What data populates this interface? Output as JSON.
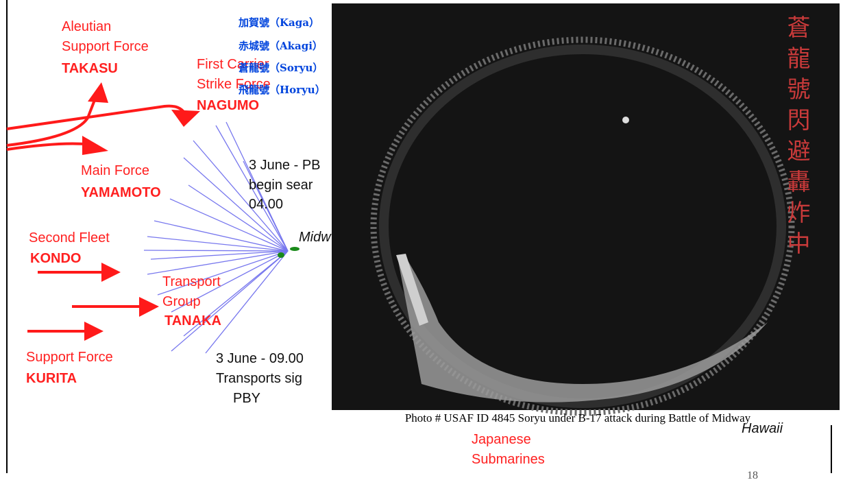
{
  "forces": [
    {
      "name_lines": [
        "Aleutian",
        "Support Force"
      ],
      "commander": "TAKASU"
    },
    {
      "name_lines": [
        "First Carrier",
        "Strike Force"
      ],
      "commander": "NAGUMO"
    },
    {
      "name_lines": [
        "Main Force"
      ],
      "commander": "YAMAMOTO"
    },
    {
      "name_lines": [
        "Second Fleet"
      ],
      "commander": "KONDO"
    },
    {
      "name_lines": [
        "Transport",
        "Group"
      ],
      "commander": "TANAKA"
    },
    {
      "name_lines": [
        "Support Force"
      ],
      "commander": "KURITA"
    }
  ],
  "notes": [
    {
      "lines": [
        "3 June - PB",
        "begin sear",
        "04.00"
      ]
    },
    {
      "lines": [
        "3 June - 09.00",
        "Transports sig",
        "PBY"
      ]
    }
  ],
  "midway": "Midw",
  "submarines": [
    "Japanese",
    "Submarines"
  ],
  "hawaii": "Hawaii",
  "carriers": [
    "加賀號（Kaga）",
    "赤城號（Akagi）",
    "蒼龍號（Soryu）",
    "飛龍號（Horyu）"
  ],
  "photo_overlay_text": "蒼龍號閃避轟炸中",
  "photo_caption": "Photo #  USAF ID 4845     Soryu under B-17 attack during Battle of Midway",
  "page_number": "18"
}
